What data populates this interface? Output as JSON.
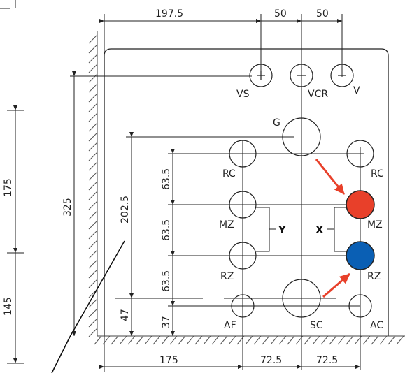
{
  "dimensions": {
    "top": [
      "197.5",
      "50",
      "50"
    ],
    "bottom": [
      "175",
      "72.5",
      "72.5"
    ],
    "left_outer": [
      "175",
      "145"
    ],
    "height_325": "325",
    "height_2025": "202.5",
    "height_47": "47",
    "vertical_right": [
      "63.5",
      "63.5",
      "63.5",
      "37"
    ]
  },
  "labels": {
    "vs": "VS",
    "vcr": "VCR",
    "v": "V",
    "g": "G",
    "rc_left": "RC",
    "rc_right": "RC",
    "mz_left": "MZ",
    "mz_right": "MZ",
    "rz_left": "RZ",
    "rz_right": "RZ",
    "af": "AF",
    "sc": "SC",
    "ac": "AC",
    "axis_y": "Y",
    "axis_x": "X"
  },
  "colors": {
    "highlight_mz": "#e8402a",
    "highlight_rz": "#0a5fb4",
    "arrow": "#e8402a",
    "line": "#222222"
  }
}
